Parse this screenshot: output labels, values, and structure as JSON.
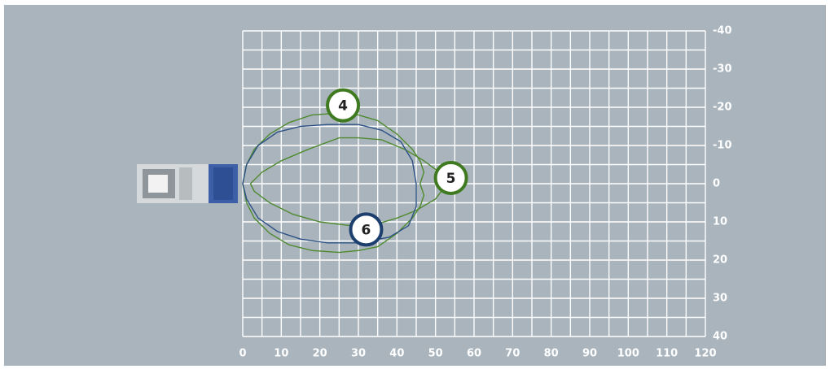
{
  "chart_data": {
    "type": "line",
    "xlim": [
      0,
      120
    ],
    "ylim": [
      -40,
      40
    ],
    "xticks": [
      0,
      10,
      20,
      30,
      40,
      50,
      60,
      70,
      80,
      90,
      100,
      110,
      120
    ],
    "yticks": [
      -40,
      -30,
      -20,
      -10,
      0,
      10,
      20,
      30,
      40
    ],
    "xgrid": [
      0,
      5,
      10,
      15,
      20,
      25,
      30,
      35,
      40,
      45,
      50,
      55,
      60,
      65,
      70,
      75,
      80,
      85,
      90,
      95,
      100,
      105,
      110,
      115,
      120
    ],
    "ygrid": [
      -40,
      -35,
      -30,
      -25,
      -20,
      -15,
      -10,
      -5,
      0,
      5,
      10,
      15,
      20,
      25,
      30,
      35,
      40
    ],
    "grid": true,
    "series": [
      {
        "color": "#4f8a2e",
        "x": [
          0,
          1,
          3,
          7,
          12,
          18,
          25,
          30,
          35,
          40,
          44,
          46,
          47,
          46,
          47,
          46,
          44,
          40,
          35,
          30,
          25,
          18,
          12,
          7,
          3,
          1,
          0
        ],
        "values": [
          0,
          -5,
          -9,
          -13,
          -16,
          -18,
          -18.5,
          -18,
          -16.5,
          -13,
          -9,
          -6,
          -3,
          0,
          3,
          6,
          9,
          13,
          16.5,
          17.5,
          18,
          17.5,
          16,
          13,
          9,
          5,
          0
        ]
      },
      {
        "color": "#4f8a2e",
        "x": [
          2,
          5,
          10,
          17,
          25,
          30,
          36,
          42,
          47,
          51,
          53,
          50,
          45,
          40,
          35,
          28,
          20,
          13,
          7,
          3,
          2
        ],
        "values": [
          0,
          -3,
          -6,
          -9,
          -12,
          -12,
          -11.5,
          -9,
          -6,
          -3,
          0,
          4,
          7,
          9,
          10.5,
          11,
          10,
          8,
          5,
          2,
          0
        ]
      },
      {
        "color": "#2d5184",
        "x": [
          0,
          1,
          4,
          9,
          15,
          22,
          30,
          36,
          41,
          44,
          45,
          45,
          43,
          38,
          30,
          22,
          15,
          9,
          4,
          1,
          0
        ],
        "values": [
          0,
          -5,
          -10,
          -13.5,
          -15,
          -15.5,
          -15.5,
          -14,
          -11,
          -6,
          0,
          6,
          11,
          14,
          15.5,
          15.5,
          14.5,
          12.5,
          9,
          4,
          0
        ]
      }
    ],
    "annotations": [
      {
        "text": "4",
        "x": 26,
        "y": -20.5,
        "color": "#3f7a20"
      },
      {
        "text": "5",
        "x": 54,
        "y": -1.5,
        "color": "#3f7a20"
      },
      {
        "text": "6",
        "x": 32,
        "y": 12,
        "color": "#1c3f6e"
      }
    ]
  }
}
